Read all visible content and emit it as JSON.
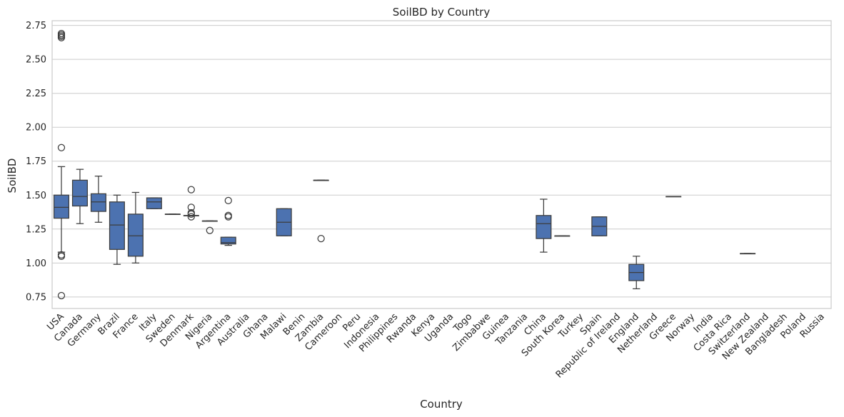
{
  "chart_data": {
    "type": "box",
    "title": "SoilBD by Country",
    "xlabel": "Country",
    "ylabel": "SoilBD",
    "ylim": [
      0.665,
      2.785
    ],
    "yticks": [
      "0.75",
      "1.00",
      "1.25",
      "1.50",
      "1.75",
      "2.00",
      "2.25",
      "2.50",
      "2.75"
    ],
    "grid": "horizontal",
    "colors": {
      "box": "#4c72b0",
      "line": "#3d3d3d",
      "grid": "#cccccc",
      "frame": "#cccccc"
    },
    "categories": [
      "USA",
      "Canada",
      "Germany",
      "Brazil",
      "France",
      "Italy",
      "Sweden",
      "Denmark",
      "Nigeria",
      "Argentina",
      "Australia",
      "Ghana",
      "Malawi",
      "Benin",
      "Zambia",
      "Cameroon",
      "Peru",
      "Indonesia",
      "Philippines",
      "Rwanda",
      "Kenya",
      "Uganda",
      "Togo",
      "Zimbabwe",
      "Guinea",
      "Tanzania",
      "China",
      "South Korea",
      "Turkey",
      "Spain",
      "Republic of Ireland",
      "England",
      "Netherland",
      "Greece",
      "Norway",
      "India",
      "Costa Rica",
      "Switzerland",
      "New Zealand",
      "Bangladesh",
      "Poland",
      "Russia"
    ],
    "boxes": [
      {
        "category": "USA",
        "whisker_low": 1.08,
        "q1": 1.33,
        "median": 1.41,
        "q3": 1.5,
        "whisker_high": 1.71,
        "outliers": [
          2.69,
          2.68,
          2.67,
          2.66,
          1.85,
          1.06,
          1.05,
          0.76
        ]
      },
      {
        "category": "Canada",
        "whisker_low": 1.29,
        "q1": 1.42,
        "median": 1.49,
        "q3": 1.61,
        "whisker_high": 1.69,
        "outliers": []
      },
      {
        "category": "Germany",
        "whisker_low": 1.3,
        "q1": 1.38,
        "median": 1.45,
        "q3": 1.51,
        "whisker_high": 1.64,
        "outliers": []
      },
      {
        "category": "Brazil",
        "whisker_low": 0.99,
        "q1": 1.1,
        "median": 1.28,
        "q3": 1.45,
        "whisker_high": 1.5,
        "outliers": []
      },
      {
        "category": "France",
        "whisker_low": 1.0,
        "q1": 1.05,
        "median": 1.2,
        "q3": 1.36,
        "whisker_high": 1.52,
        "outliers": []
      },
      {
        "category": "Italy",
        "whisker_low": 1.4,
        "q1": 1.4,
        "median": 1.45,
        "q3": 1.48,
        "whisker_high": 1.48,
        "outliers": []
      },
      {
        "category": "Sweden",
        "whisker_low": 1.36,
        "q1": 1.36,
        "median": 1.36,
        "q3": 1.36,
        "whisker_high": 1.36,
        "outliers": []
      },
      {
        "category": "Denmark",
        "whisker_low": 1.35,
        "q1": 1.35,
        "median": 1.35,
        "q3": 1.35,
        "whisker_high": 1.35,
        "outliers": [
          1.54,
          1.41,
          1.37,
          1.36,
          1.34
        ]
      },
      {
        "category": "Nigeria",
        "whisker_low": 1.31,
        "q1": 1.31,
        "median": 1.31,
        "q3": 1.31,
        "whisker_high": 1.31,
        "outliers": [
          1.24
        ]
      },
      {
        "category": "Argentina",
        "whisker_low": 1.13,
        "q1": 1.14,
        "median": 1.15,
        "q3": 1.19,
        "whisker_high": 1.19,
        "outliers": [
          1.46,
          1.35,
          1.34
        ]
      },
      {
        "category": "Malawi",
        "whisker_low": 1.2,
        "q1": 1.2,
        "median": 1.3,
        "q3": 1.4,
        "whisker_high": 1.4,
        "outliers": []
      },
      {
        "category": "Zambia",
        "whisker_low": 1.61,
        "q1": 1.61,
        "median": 1.61,
        "q3": 1.61,
        "whisker_high": 1.61,
        "outliers": [
          1.18
        ]
      },
      {
        "category": "China",
        "whisker_low": 1.08,
        "q1": 1.18,
        "median": 1.29,
        "q3": 1.35,
        "whisker_high": 1.47,
        "outliers": []
      },
      {
        "category": "South Korea",
        "whisker_low": 1.2,
        "q1": 1.2,
        "median": 1.2,
        "q3": 1.2,
        "whisker_high": 1.2,
        "outliers": []
      },
      {
        "category": "Spain",
        "whisker_low": 1.2,
        "q1": 1.2,
        "median": 1.27,
        "q3": 1.34,
        "whisker_high": 1.34,
        "outliers": []
      },
      {
        "category": "England",
        "whisker_low": 0.81,
        "q1": 0.87,
        "median": 0.93,
        "q3": 0.99,
        "whisker_high": 1.05,
        "outliers": []
      },
      {
        "category": "Greece",
        "whisker_low": 1.49,
        "q1": 1.49,
        "median": 1.49,
        "q3": 1.49,
        "whisker_high": 1.49,
        "outliers": []
      },
      {
        "category": "Switzerland",
        "whisker_low": 1.07,
        "q1": 1.07,
        "median": 1.07,
        "q3": 1.07,
        "whisker_high": 1.07,
        "outliers": []
      }
    ]
  }
}
